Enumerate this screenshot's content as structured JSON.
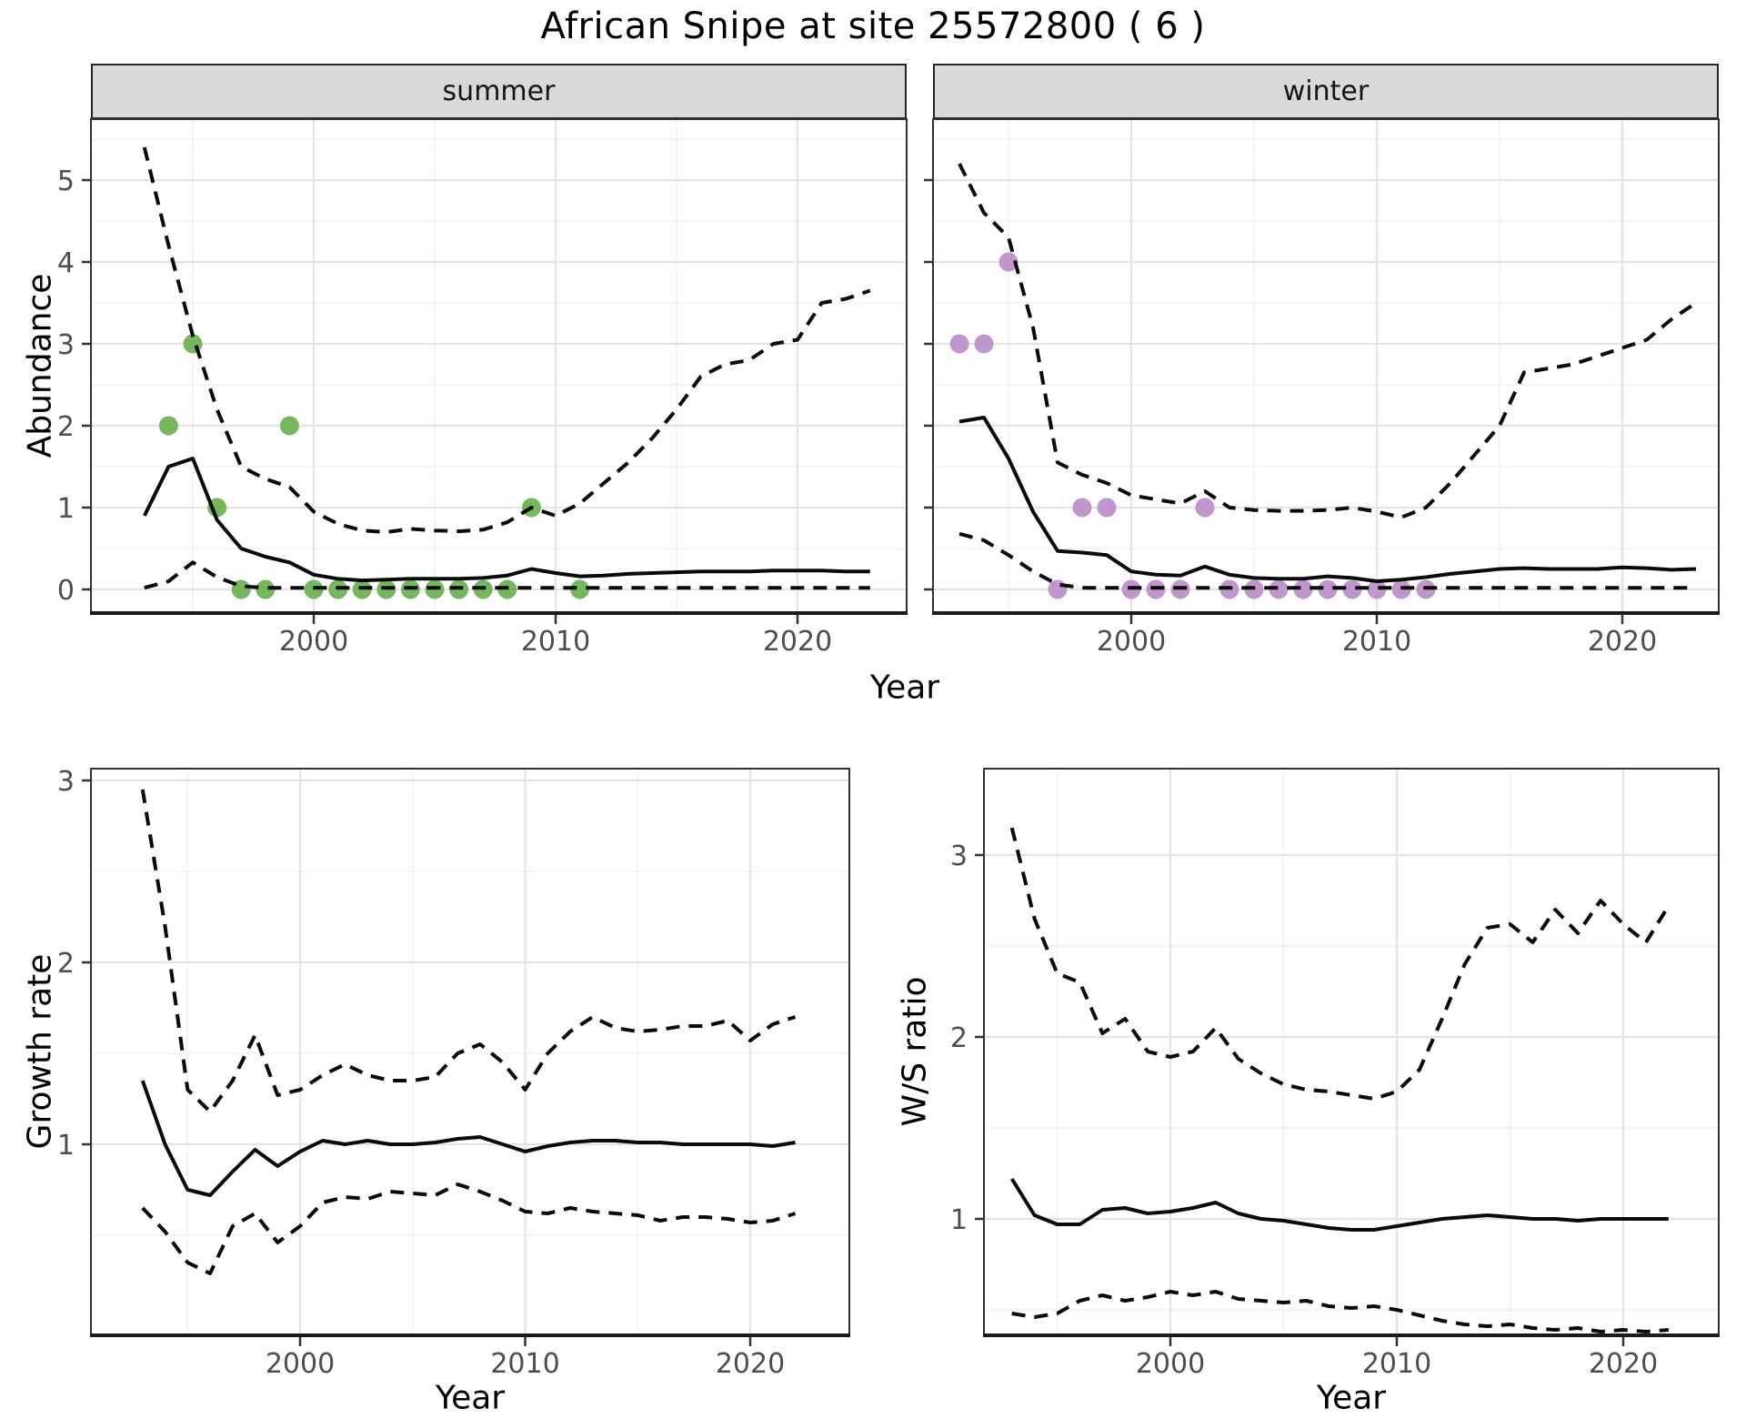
{
  "title": "African Snipe at site 25572800 ( 6 )",
  "colors": {
    "summer_point": "#75B85C",
    "winter_point": "#C196CD",
    "line": "#0A0A0A",
    "strip_bg": "#D9D9D9",
    "panel_border": "#333333",
    "grid_major": "#E4E4E4",
    "grid_minor": "#F2F2F2",
    "tick_text": "#4D4D4D"
  },
  "chart_data": [
    {
      "type": "line",
      "facet_label": "summer",
      "xlabel": "Year",
      "ylabel": "Abundance",
      "xlim": [
        1991,
        2024.5
      ],
      "ylim": [
        -0.3,
        5.7
      ],
      "grid": true,
      "legend_position": "none",
      "xticks": [
        2000,
        2010,
        2020
      ],
      "yticks": [
        0,
        1,
        2,
        3,
        4,
        5
      ],
      "points": {
        "name": "observed counts",
        "color_key": "summer_point",
        "years": [
          1994,
          1995,
          1996,
          1997,
          1998,
          1999,
          2000,
          2001,
          2002,
          2003,
          2004,
          2005,
          2006,
          2007,
          2008,
          2009,
          2011
        ],
        "values": [
          2,
          3,
          1,
          0,
          0,
          2,
          0,
          0,
          0,
          0,
          0,
          0,
          0,
          0,
          0,
          1,
          0
        ]
      },
      "x": [
        1993,
        1994,
        1995,
        1996,
        1997,
        1998,
        1999,
        2000,
        2001,
        2002,
        2003,
        2004,
        2005,
        2006,
        2007,
        2008,
        2009,
        2010,
        2011,
        2012,
        2013,
        2014,
        2015,
        2016,
        2017,
        2018,
        2019,
        2020,
        2021,
        2022,
        2023
      ],
      "series": [
        {
          "name": "fit",
          "style": "solid",
          "values": [
            0.9,
            1.5,
            1.6,
            0.85,
            0.5,
            0.4,
            0.33,
            0.18,
            0.13,
            0.11,
            0.12,
            0.13,
            0.13,
            0.13,
            0.14,
            0.17,
            0.25,
            0.2,
            0.16,
            0.17,
            0.19,
            0.2,
            0.21,
            0.22,
            0.22,
            0.22,
            0.23,
            0.23,
            0.23,
            0.22,
            0.22
          ]
        },
        {
          "name": "upper CI",
          "style": "dashed",
          "values": [
            5.4,
            4.2,
            3.1,
            2.2,
            1.5,
            1.35,
            1.25,
            0.95,
            0.8,
            0.72,
            0.7,
            0.74,
            0.72,
            0.71,
            0.73,
            0.82,
            1.0,
            0.9,
            1.05,
            1.3,
            1.55,
            1.85,
            2.2,
            2.6,
            2.75,
            2.8,
            3.0,
            3.05,
            3.5,
            3.55,
            3.65
          ]
        },
        {
          "name": "lower CI",
          "style": "dashed",
          "values": [
            0.02,
            0.1,
            0.33,
            0.15,
            0.04,
            0.02,
            0.02,
            0.02,
            0.02,
            0.02,
            0.02,
            0.02,
            0.02,
            0.02,
            0.02,
            0.02,
            0.02,
            0.02,
            0.02,
            0.02,
            0.02,
            0.02,
            0.02,
            0.02,
            0.02,
            0.02,
            0.02,
            0.02,
            0.02,
            0.02,
            0.02
          ]
        }
      ]
    },
    {
      "type": "line",
      "facet_label": "winter",
      "xlabel": "Year",
      "ylabel": "Abundance",
      "xlim": [
        1991,
        2024.5
      ],
      "ylim": [
        -0.3,
        5.7
      ],
      "grid": true,
      "legend_position": "none",
      "xticks": [
        2000,
        2010,
        2020
      ],
      "yticks": [
        0,
        1,
        2,
        3,
        4,
        5
      ],
      "points": {
        "name": "observed counts",
        "color_key": "winter_point",
        "years": [
          1993,
          1994,
          1995,
          1997,
          1998,
          1999,
          2000,
          2001,
          2002,
          2003,
          2004,
          2005,
          2006,
          2007,
          2008,
          2009,
          2010,
          2011,
          2012
        ],
        "values": [
          3,
          3,
          4,
          0,
          1,
          1,
          0,
          0,
          0,
          1,
          0,
          0,
          0,
          0,
          0,
          0,
          0,
          0,
          0
        ]
      },
      "x": [
        1993,
        1994,
        1995,
        1996,
        1997,
        1998,
        1999,
        2000,
        2001,
        2002,
        2003,
        2004,
        2005,
        2006,
        2007,
        2008,
        2009,
        2010,
        2011,
        2012,
        2013,
        2014,
        2015,
        2016,
        2017,
        2018,
        2019,
        2020,
        2021,
        2022,
        2023
      ],
      "series": [
        {
          "name": "fit",
          "style": "solid",
          "values": [
            2.05,
            2.1,
            1.6,
            0.95,
            0.47,
            0.45,
            0.42,
            0.22,
            0.18,
            0.17,
            0.28,
            0.18,
            0.14,
            0.13,
            0.13,
            0.16,
            0.14,
            0.1,
            0.12,
            0.15,
            0.19,
            0.22,
            0.25,
            0.26,
            0.25,
            0.25,
            0.25,
            0.27,
            0.26,
            0.24,
            0.25
          ]
        },
        {
          "name": "upper CI",
          "style": "dashed",
          "values": [
            5.2,
            4.6,
            4.3,
            3.2,
            1.55,
            1.4,
            1.3,
            1.15,
            1.1,
            1.05,
            1.2,
            1.0,
            0.97,
            0.96,
            0.96,
            0.97,
            1.0,
            0.95,
            0.88,
            1.0,
            1.3,
            1.65,
            2.0,
            2.65,
            2.7,
            2.75,
            2.85,
            2.95,
            3.05,
            3.3,
            3.5
          ]
        },
        {
          "name": "lower CI",
          "style": "dashed",
          "values": [
            0.68,
            0.6,
            0.42,
            0.22,
            0.06,
            0.02,
            0.02,
            0.02,
            0.02,
            0.02,
            0.02,
            0.02,
            0.02,
            0.02,
            0.02,
            0.02,
            0.02,
            0.02,
            0.02,
            0.02,
            0.02,
            0.02,
            0.02,
            0.02,
            0.02,
            0.02,
            0.02,
            0.02,
            0.02,
            0.02,
            0.02
          ]
        }
      ]
    },
    {
      "type": "line",
      "facet_label": "",
      "xlabel": "Year",
      "ylabel": "Growth rate",
      "xlim": [
        1991,
        2024.5
      ],
      "ylim": [
        0,
        3.05
      ],
      "grid": true,
      "legend_position": "none",
      "xticks": [
        2000,
        2010,
        2020
      ],
      "yticks": [
        1,
        2,
        3
      ],
      "points": null,
      "x": [
        1993,
        1994,
        1995,
        1996,
        1997,
        1998,
        1999,
        2000,
        2001,
        2002,
        2003,
        2004,
        2005,
        2006,
        2007,
        2008,
        2009,
        2010,
        2011,
        2012,
        2013,
        2014,
        2015,
        2016,
        2017,
        2018,
        2019,
        2020,
        2021,
        2022
      ],
      "series": [
        {
          "name": "fit",
          "style": "solid",
          "values": [
            1.35,
            1.0,
            0.75,
            0.72,
            0.85,
            0.97,
            0.88,
            0.96,
            1.02,
            1.0,
            1.02,
            1.0,
            1.0,
            1.01,
            1.03,
            1.04,
            1.0,
            0.96,
            0.99,
            1.01,
            1.02,
            1.02,
            1.01,
            1.01,
            1.0,
            1.0,
            1.0,
            1.0,
            0.99,
            1.01
          ]
        },
        {
          "name": "upper CI",
          "style": "dashed",
          "values": [
            2.95,
            2.2,
            1.3,
            1.18,
            1.35,
            1.6,
            1.27,
            1.3,
            1.38,
            1.44,
            1.38,
            1.35,
            1.35,
            1.37,
            1.5,
            1.55,
            1.45,
            1.3,
            1.5,
            1.62,
            1.7,
            1.64,
            1.62,
            1.63,
            1.65,
            1.65,
            1.68,
            1.57,
            1.66,
            1.7
          ]
        },
        {
          "name": "lower CI",
          "style": "dashed",
          "values": [
            0.65,
            0.52,
            0.35,
            0.29,
            0.55,
            0.62,
            0.46,
            0.55,
            0.68,
            0.71,
            0.7,
            0.74,
            0.73,
            0.72,
            0.78,
            0.74,
            0.69,
            0.63,
            0.62,
            0.65,
            0.63,
            0.62,
            0.61,
            0.58,
            0.6,
            0.6,
            0.59,
            0.57,
            0.58,
            0.62
          ]
        }
      ]
    },
    {
      "type": "line",
      "facet_label": "",
      "xlabel": "Year",
      "ylabel": "W/S ratio",
      "xlim": [
        1991,
        2024.5
      ],
      "ylim": [
        0.4,
        3.45
      ],
      "grid": true,
      "legend_position": "none",
      "xticks": [
        2000,
        2010,
        2020
      ],
      "yticks": [
        1,
        2,
        3
      ],
      "points": null,
      "x": [
        1993,
        1994,
        1995,
        1996,
        1997,
        1998,
        1999,
        2000,
        2001,
        2002,
        2003,
        2004,
        2005,
        2006,
        2007,
        2008,
        2009,
        2010,
        2011,
        2012,
        2013,
        2014,
        2015,
        2016,
        2017,
        2018,
        2019,
        2020,
        2021,
        2022
      ],
      "series": [
        {
          "name": "fit",
          "style": "solid",
          "values": [
            1.22,
            1.02,
            0.97,
            0.97,
            1.05,
            1.06,
            1.03,
            1.04,
            1.06,
            1.09,
            1.03,
            1.0,
            0.99,
            0.97,
            0.95,
            0.94,
            0.94,
            0.96,
            0.98,
            1.0,
            1.01,
            1.02,
            1.01,
            1.0,
            1.0,
            0.99,
            1.0,
            1.0,
            1.0,
            1.0
          ]
        },
        {
          "name": "upper CI",
          "style": "dashed",
          "values": [
            3.15,
            2.65,
            2.35,
            2.3,
            2.02,
            2.1,
            1.92,
            1.89,
            1.92,
            2.05,
            1.88,
            1.8,
            1.74,
            1.71,
            1.7,
            1.68,
            1.66,
            1.7,
            1.82,
            2.1,
            2.4,
            2.6,
            2.62,
            2.52,
            2.7,
            2.57,
            2.75,
            2.62,
            2.52,
            2.72
          ]
        },
        {
          "name": "lower CI",
          "style": "dashed",
          "values": [
            0.48,
            0.46,
            0.48,
            0.55,
            0.58,
            0.55,
            0.57,
            0.6,
            0.58,
            0.6,
            0.56,
            0.55,
            0.54,
            0.55,
            0.52,
            0.51,
            0.52,
            0.5,
            0.47,
            0.44,
            0.42,
            0.41,
            0.42,
            0.4,
            0.39,
            0.4,
            0.38,
            0.39,
            0.38,
            0.39
          ]
        }
      ]
    }
  ]
}
